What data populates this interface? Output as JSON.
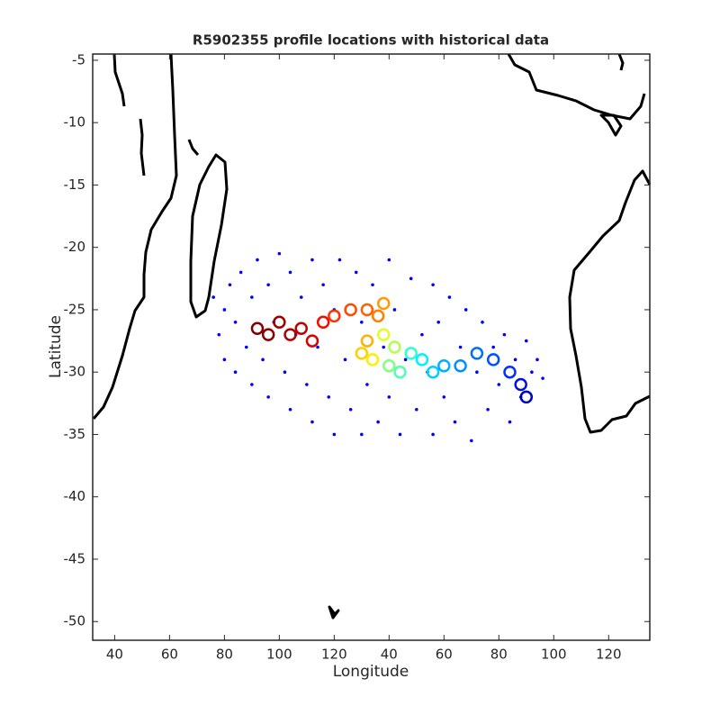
{
  "chart_data": {
    "type": "scatter",
    "title": "R5902355 profile locations with historical data",
    "xlabel": "Longitude",
    "ylabel": "Latitude",
    "xlim": [
      26,
      127.5
    ],
    "ylim": [
      -51.5,
      -4.5
    ],
    "xticks": [
      {
        "value": 30,
        "label": "40"
      },
      {
        "value": 40,
        "label": "60"
      },
      {
        "value": 50,
        "label": "80"
      },
      {
        "value": 60,
        "label": "100"
      },
      {
        "value": 70,
        "label": "120"
      },
      {
        "value": 80,
        "label": "40"
      },
      {
        "value": 90,
        "label": "60"
      },
      {
        "value": 100,
        "label": "80"
      },
      {
        "value": 110,
        "label": "100"
      },
      {
        "value": 120,
        "label": "120"
      }
    ],
    "yticks": [
      -5,
      -10,
      -15,
      -20,
      -25,
      -30,
      -35,
      -40,
      -45,
      -50
    ],
    "series": [
      {
        "color": "#0000ff",
        "x": [
          48,
          49,
          50,
          50,
          51,
          52,
          52,
          53,
          54,
          55,
          55,
          56,
          57,
          58,
          58,
          59,
          60,
          61,
          62,
          62,
          63,
          64,
          65,
          66,
          66,
          67,
          68,
          69,
          70,
          70,
          71,
          72,
          73,
          74,
          75,
          75,
          76,
          77,
          78,
          79,
          80,
          80,
          81,
          82,
          83,
          84,
          85,
          86,
          87,
          88,
          88,
          89,
          90,
          91,
          92,
          93,
          94,
          95,
          96,
          97,
          98,
          99,
          100,
          101,
          102,
          103,
          104,
          105,
          106,
          107,
          108
        ],
        "y": [
          -24,
          -27,
          -29,
          -25,
          -23,
          -26,
          -30,
          -22,
          -28,
          -24,
          -31,
          -21,
          -29,
          -23,
          -32,
          -26,
          -20.5,
          -30,
          -22,
          -33,
          -27,
          -24,
          -31,
          -21,
          -34,
          -28,
          -23,
          -32,
          -25,
          -35,
          -21,
          -29,
          -33,
          -22,
          -26,
          -35,
          -31,
          -23,
          -34,
          -28,
          -21,
          -32,
          -25,
          -35,
          -29,
          -22.5,
          -33,
          -27,
          -30,
          -23,
          -35,
          -26,
          -32,
          -24,
          -34,
          -28,
          -25,
          -35.5,
          -30,
          -26,
          -33,
          -28,
          -31,
          -27,
          -34,
          -29,
          -32,
          -27.5,
          -30,
          -29,
          -30.5
        ]
      },
      {
        "colors": [
          "#800000",
          "#8b0000",
          "#a00000",
          "#b00000",
          "#c00000",
          "#d80000",
          "#ee1000",
          "#ff3000",
          "#ff4a00",
          "#ff6000",
          "#ff8000",
          "#ff9a00",
          "#ffb000",
          "#ffd000",
          "#ffee00",
          "#e0ff20",
          "#b0ff50",
          "#80ff80",
          "#50ffb0",
          "#30ffd0",
          "#00f0ff",
          "#00d0ff",
          "#00b0ff",
          "#0090ff",
          "#0070ff",
          "#0050ff",
          "#0030ff",
          "#0010e0",
          "#0000c0"
        ],
        "x": [
          56,
          58,
          60,
          62,
          64,
          66,
          68,
          70,
          73,
          76,
          78,
          79,
          76,
          75,
          77,
          79,
          81,
          80,
          82,
          84,
          86,
          88,
          90,
          93,
          96,
          99,
          102,
          104,
          105
        ],
        "y": [
          -26.5,
          -27,
          -26,
          -27,
          -26.5,
          -27.5,
          -26,
          -25.5,
          -25,
          -25,
          -25.5,
          -24.5,
          -27.5,
          -28.5,
          -29,
          -27,
          -28,
          -29.5,
          -30,
          -28.5,
          -29,
          -30,
          -29.5,
          -29.5,
          -28.5,
          -29,
          -30,
          -31,
          -32
        ]
      }
    ]
  }
}
